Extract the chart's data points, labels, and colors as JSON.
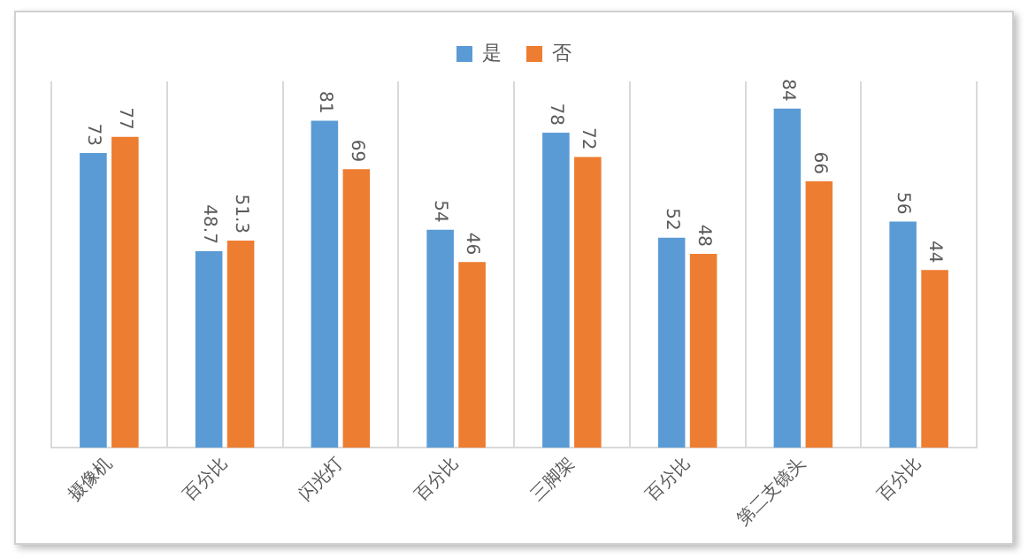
{
  "chart_data": {
    "type": "bar",
    "categories": [
      "摄像机",
      "百分比",
      "闪光灯",
      "百分比",
      "三脚架",
      "百分比",
      "第二支镜头",
      "百分比"
    ],
    "series": [
      {
        "name": "是",
        "color": "#5b9bd5",
        "values": [
          73,
          48.7,
          81,
          54,
          78,
          52,
          84,
          56
        ]
      },
      {
        "name": "否",
        "color": "#ed7d31",
        "values": [
          77,
          51.3,
          69,
          46,
          72,
          48,
          66,
          44
        ]
      }
    ],
    "data_labels": true,
    "grid": "x",
    "legend": "top"
  }
}
